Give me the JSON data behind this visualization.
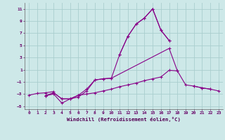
{
  "title": "",
  "xlabel": "Windchill (Refroidissement éolien,°C)",
  "ylabel": "",
  "background_color": "#cde8e8",
  "grid_color": "#aacece",
  "line_color": "#880088",
  "xlim": [
    -0.5,
    23.5
  ],
  "ylim": [
    -5.5,
    12.0
  ],
  "xticks": [
    0,
    1,
    2,
    3,
    4,
    5,
    6,
    7,
    8,
    9,
    10,
    11,
    12,
    13,
    14,
    15,
    16,
    17,
    18,
    19,
    20,
    21,
    22,
    23
  ],
  "yticks": [
    -5,
    -3,
    -1,
    1,
    3,
    5,
    7,
    9,
    11
  ],
  "series": [
    [
      null,
      null,
      null,
      null,
      null,
      null,
      null,
      null,
      null,
      null,
      null,
      3.5,
      6.5,
      8.5,
      9.5,
      11.0,
      7.5,
      5.8,
      null,
      null,
      null,
      null,
      null,
      null
    ],
    [
      null,
      null,
      -3.3,
      -3.0,
      -4.5,
      -3.8,
      -3.5,
      -2.5,
      -0.7,
      -0.5,
      -0.4,
      3.5,
      6.5,
      8.5,
      9.5,
      11.0,
      7.5,
      5.8,
      null,
      null,
      null,
      null,
      null,
      null
    ],
    [
      null,
      null,
      -3.3,
      -2.8,
      -3.8,
      -3.8,
      -3.2,
      -2.2,
      -0.7,
      -0.5,
      -0.4,
      null,
      null,
      null,
      null,
      null,
      null,
      4.5,
      0.8,
      -1.5,
      -1.7,
      -2.0,
      -2.2,
      null
    ],
    [
      -3.2,
      -2.9,
      -2.8,
      -2.6,
      null,
      null,
      null,
      null,
      null,
      null,
      null,
      null,
      null,
      null,
      null,
      null,
      null,
      null,
      null,
      null,
      null,
      null,
      null,
      null
    ],
    [
      null,
      null,
      -3.3,
      -2.8,
      -3.8,
      -3.8,
      -3.2,
      -3.0,
      -2.8,
      -2.5,
      -2.2,
      -1.8,
      -1.5,
      -1.2,
      -0.8,
      -0.5,
      -0.2,
      0.9,
      0.8,
      null,
      null,
      null,
      null,
      null
    ],
    [
      null,
      null,
      null,
      null,
      null,
      null,
      null,
      null,
      null,
      null,
      null,
      null,
      null,
      null,
      null,
      null,
      null,
      null,
      null,
      null,
      -1.7,
      -2.0,
      -2.2,
      -2.5
    ]
  ]
}
